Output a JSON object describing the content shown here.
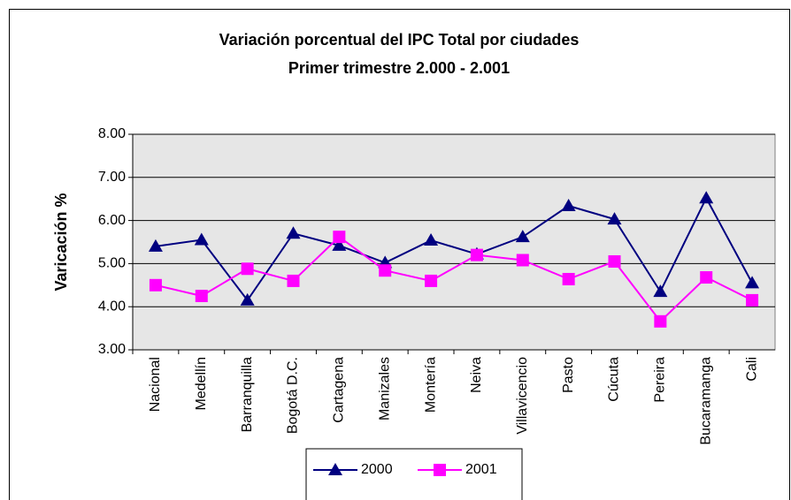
{
  "chart_data": {
    "type": "line",
    "title": "Variación porcentual  del IPC Total por ciudades",
    "subtitle": "Primer trimestre 2.000 - 2.001",
    "y_label": "Varicación %",
    "categories": [
      "Nacional",
      "Medellín",
      "Barranquilla",
      "Bogotá D.C.",
      "Cartagena",
      "Manizales",
      "Montería",
      "Neiva",
      "Villavicencio",
      "Pasto",
      "Cúcuta",
      "Pereira",
      "Bucaramanga",
      "Cali"
    ],
    "series": [
      {
        "name": "2000",
        "color": "#000080",
        "marker": "triangle",
        "values": [
          5.4,
          5.55,
          4.15,
          5.7,
          5.42,
          5.02,
          5.54,
          5.22,
          5.62,
          6.34,
          6.03,
          4.35,
          6.52,
          4.55
        ]
      },
      {
        "name": "2001",
        "color": "#ff00ff",
        "marker": "square",
        "values": [
          4.5,
          4.25,
          4.88,
          4.6,
          5.62,
          4.84,
          4.6,
          5.2,
          5.08,
          4.64,
          5.05,
          3.66,
          4.68,
          4.15
        ]
      }
    ],
    "ylim": [
      3,
      8
    ],
    "yticks": [
      {
        "value": 3,
        "label": "3.00"
      },
      {
        "value": 4,
        "label": "4.00"
      },
      {
        "value": 5,
        "label": "5.00"
      },
      {
        "value": 6,
        "label": "6.00"
      },
      {
        "value": 7,
        "label": "7.00"
      },
      {
        "value": 8,
        "label": "8.00"
      }
    ],
    "grid": true,
    "legend": "bottom"
  }
}
